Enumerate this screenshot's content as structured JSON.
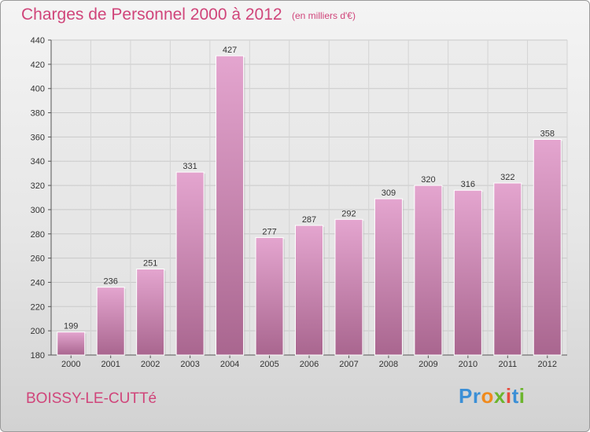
{
  "header": {
    "title": "Charges de Personnel 2000 à 2012",
    "subtitle": "(en milliers d'€)"
  },
  "footer": {
    "commune": "BOISSY-LE-CUTTé",
    "logo": {
      "text": "Proxiti",
      "letter_colors": [
        "#3b8fd6",
        "#3b8fd6",
        "#f08a1c",
        "#6cb52d",
        "#e84a3c",
        "#3b8fd6",
        "#6cb52d"
      ]
    }
  },
  "colors": {
    "bar_top": "#e4a5cf",
    "bar_bottom": "#a9668f",
    "text_accent": "#d0457a"
  },
  "chart_data": {
    "type": "bar",
    "title": "Charges de Personnel 2000 à 2012",
    "subtitle": "(en milliers d'€)",
    "categories": [
      "2000",
      "2001",
      "2002",
      "2003",
      "2004",
      "2005",
      "2006",
      "2007",
      "2008",
      "2009",
      "2010",
      "2011",
      "2012"
    ],
    "values": [
      199,
      236,
      251,
      331,
      427,
      277,
      287,
      292,
      309,
      320,
      316,
      322,
      358
    ],
    "ylim": [
      180,
      440
    ],
    "yticks": [
      180,
      200,
      220,
      240,
      260,
      280,
      300,
      320,
      340,
      360,
      380,
      400,
      420,
      440
    ],
    "grid": true,
    "data_labels": true
  }
}
